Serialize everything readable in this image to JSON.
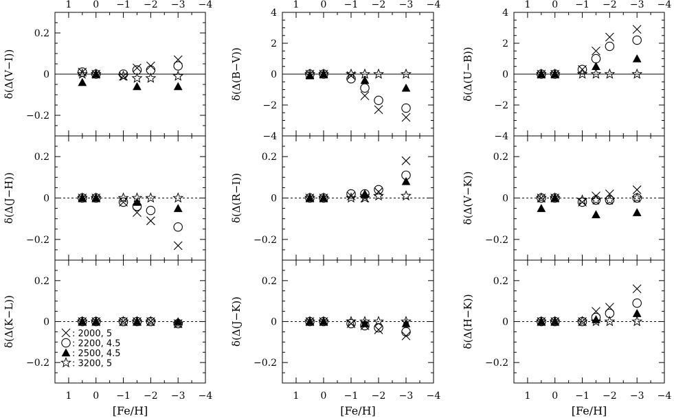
{
  "figure": {
    "x_axis_label": "[Fe/H]",
    "x_tick_labels": [
      "1",
      "0",
      "−1",
      "−2",
      "−3",
      "−4"
    ],
    "colors": {
      "ink": "#000000",
      "background": "#ffffff"
    }
  },
  "legend": {
    "placement": "bottom-left of panel (U−B)",
    "entries": [
      {
        "symbol": "cross",
        "label": "2000, 5"
      },
      {
        "symbol": "open-circle",
        "label": "2200, 4.5"
      },
      {
        "symbol": "filled-triangle",
        "label": "2500, 4.5"
      },
      {
        "symbol": "open-star",
        "label": "3200, 5"
      }
    ]
  },
  "chart_data": [
    {
      "type": "scatter",
      "ylabel": "δ(Δ(V−I))",
      "xlim": [
        1.5,
        -4
      ],
      "ylim": [
        -0.3,
        0.3
      ],
      "y_ticks": [
        -0.2,
        0,
        0.2
      ],
      "y_tick_labels": [
        "−0.2",
        "0",
        "0.2"
      ],
      "zero_line": "solid",
      "series": [
        {
          "name": "2000, 5",
          "marker": "cross",
          "x": [
            0.5,
            0,
            -1,
            -1.5,
            -2,
            -3
          ],
          "y": [
            0.01,
            0,
            -0.01,
            0.03,
            0.04,
            0.07
          ]
        },
        {
          "name": "2200, 4.5",
          "marker": "open-circle",
          "x": [
            0.5,
            0,
            -1,
            -1.5,
            -2,
            -3
          ],
          "y": [
            0.01,
            0,
            0,
            0.02,
            0.02,
            0.04
          ]
        },
        {
          "name": "2500, 4.5",
          "marker": "filled-triangle",
          "x": [
            0.5,
            0,
            -1.5,
            -3
          ],
          "y": [
            -0.04,
            0,
            -0.06,
            -0.06
          ]
        },
        {
          "name": "3200, 5",
          "marker": "open-star",
          "x": [
            0.5,
            0,
            -1,
            -1.5,
            -2,
            -3
          ],
          "y": [
            0,
            0,
            -0.01,
            -0.02,
            -0.02,
            -0.01
          ]
        }
      ]
    },
    {
      "type": "scatter",
      "ylabel": "δ(Δ(J−H))",
      "xlim": [
        1.5,
        -4
      ],
      "ylim": [
        -0.3,
        0.3
      ],
      "y_ticks": [
        -0.2,
        0,
        0.2
      ],
      "y_tick_labels": [
        "−0.2",
        "0",
        "0.2"
      ],
      "zero_line": "dashed",
      "series": [
        {
          "name": "2000, 5",
          "marker": "cross",
          "x": [
            0.5,
            0,
            -1,
            -1.5,
            -2,
            -3
          ],
          "y": [
            0,
            0,
            -0.02,
            -0.07,
            -0.11,
            -0.23
          ]
        },
        {
          "name": "2200, 4.5",
          "marker": "open-circle",
          "x": [
            0.5,
            0,
            -1,
            -1.5,
            -2,
            -3
          ],
          "y": [
            0,
            0,
            -0.02,
            -0.04,
            -0.06,
            -0.14
          ]
        },
        {
          "name": "2500, 4.5",
          "marker": "filled-triangle",
          "x": [
            0.5,
            0,
            -1.5,
            -3
          ],
          "y": [
            0,
            0,
            -0.02,
            -0.05
          ]
        },
        {
          "name": "3200, 5",
          "marker": "open-star",
          "x": [
            0.5,
            0,
            -1,
            -1.5,
            -2,
            -3
          ],
          "y": [
            0,
            0,
            0,
            0,
            0,
            0
          ]
        }
      ]
    },
    {
      "type": "scatter",
      "ylabel": "δ(Δ(K−L))",
      "xlim": [
        1.5,
        -4
      ],
      "ylim": [
        -0.3,
        0.3
      ],
      "y_ticks": [
        -0.2,
        0,
        0.2
      ],
      "y_tick_labels": [
        "−0.2",
        "0",
        "0.2"
      ],
      "zero_line": "dashed",
      "series": [
        {
          "name": "2000, 5",
          "marker": "cross",
          "x": [
            0.5,
            0,
            -1,
            -1.5,
            -2,
            -3
          ],
          "y": [
            0,
            0,
            0,
            0,
            0,
            -0.01
          ]
        },
        {
          "name": "2200, 4.5",
          "marker": "open-circle",
          "x": [
            0.5,
            0,
            -1,
            -1.5,
            -2,
            -3
          ],
          "y": [
            0,
            0,
            0,
            0,
            0,
            -0.01
          ]
        },
        {
          "name": "2500, 4.5",
          "marker": "filled-triangle",
          "x": [
            0.5,
            0,
            -1.5,
            -3
          ],
          "y": [
            0,
            0,
            0,
            0
          ]
        },
        {
          "name": "3200, 5",
          "marker": "open-star",
          "x": [
            0.5,
            0,
            -1,
            -1.5,
            -2,
            -3
          ],
          "y": [
            0,
            0,
            0,
            0,
            0,
            -0.01
          ]
        }
      ]
    },
    {
      "type": "scatter",
      "ylabel": "δ(Δ(B−V))",
      "xlim": [
        1.5,
        -4
      ],
      "ylim": [
        -4,
        4
      ],
      "y_ticks": [
        -4,
        -2,
        0,
        2,
        4
      ],
      "y_tick_labels": [
        "−4",
        "−2",
        "0",
        "2",
        "4"
      ],
      "zero_line": "solid",
      "series": [
        {
          "name": "2000, 5",
          "marker": "cross",
          "x": [
            0.5,
            0,
            -1,
            -1.5,
            -2,
            -3
          ],
          "y": [
            0,
            0,
            -0.1,
            -1.4,
            -2.3,
            -2.8
          ]
        },
        {
          "name": "2200, 4.5",
          "marker": "open-circle",
          "x": [
            0.5,
            0,
            -1,
            -1.5,
            -2,
            -3
          ],
          "y": [
            0,
            0,
            -0.3,
            -0.9,
            -1.7,
            -2.2
          ]
        },
        {
          "name": "2500, 4.5",
          "marker": "filled-triangle",
          "x": [
            0.5,
            0,
            -1.5,
            -3
          ],
          "y": [
            -0.1,
            0,
            -0.4,
            -0.9
          ]
        },
        {
          "name": "3200, 5",
          "marker": "open-star",
          "x": [
            0.5,
            0,
            -1,
            -1.5,
            -2,
            -3
          ],
          "y": [
            0,
            0,
            0,
            0,
            0,
            0
          ]
        }
      ]
    },
    {
      "type": "scatter",
      "ylabel": "δ(Δ(R−I))",
      "xlim": [
        1.5,
        -4
      ],
      "ylim": [
        -0.3,
        0.3
      ],
      "y_ticks": [
        -0.2,
        0,
        0.2
      ],
      "y_tick_labels": [
        "−0.2",
        "0",
        "0.2"
      ],
      "zero_line": "dashed",
      "series": [
        {
          "name": "2000, 5",
          "marker": "cross",
          "x": [
            0.5,
            0,
            -1,
            -1.5,
            -2,
            -3
          ],
          "y": [
            0,
            0,
            0.01,
            0,
            0.03,
            0.18
          ]
        },
        {
          "name": "2200, 4.5",
          "marker": "open-circle",
          "x": [
            0.5,
            0,
            -1,
            -1.5,
            -2,
            -3
          ],
          "y": [
            0,
            0,
            0.02,
            0.02,
            0.04,
            0.11
          ]
        },
        {
          "name": "2500, 4.5",
          "marker": "filled-triangle",
          "x": [
            0.5,
            0,
            -1.5,
            -3
          ],
          "y": [
            0,
            0,
            0.02,
            0.08
          ]
        },
        {
          "name": "3200, 5",
          "marker": "open-star",
          "x": [
            0.5,
            0,
            -1,
            -1.5,
            -2,
            -3
          ],
          "y": [
            0,
            0,
            0,
            0,
            0.01,
            0.01
          ]
        }
      ]
    },
    {
      "type": "scatter",
      "ylabel": "δ(Δ(J−K))",
      "xlim": [
        1.5,
        -4
      ],
      "ylim": [
        -0.3,
        0.3
      ],
      "y_ticks": [
        -0.2,
        0,
        0.2
      ],
      "y_tick_labels": [
        "−0.2",
        "0",
        "0.2"
      ],
      "zero_line": "dashed",
      "series": [
        {
          "name": "2000, 5",
          "marker": "cross",
          "x": [
            0.5,
            0,
            -1,
            -1.5,
            -2,
            -3
          ],
          "y": [
            0,
            0,
            -0.01,
            -0.02,
            -0.04,
            -0.07
          ]
        },
        {
          "name": "2200, 4.5",
          "marker": "open-circle",
          "x": [
            0.5,
            0,
            -1,
            -1.5,
            -2,
            -3
          ],
          "y": [
            0,
            0,
            -0.01,
            -0.02,
            -0.03,
            -0.05
          ]
        },
        {
          "name": "2500, 4.5",
          "marker": "filled-triangle",
          "x": [
            0.5,
            0,
            -1.5,
            -3
          ],
          "y": [
            0,
            0,
            -0.01,
            -0.01
          ]
        },
        {
          "name": "3200, 5",
          "marker": "open-star",
          "x": [
            0.5,
            0,
            -1,
            -1.5,
            -2,
            -3
          ],
          "y": [
            0,
            0,
            0,
            0,
            0,
            0
          ]
        }
      ]
    },
    {
      "type": "scatter",
      "ylabel": "δ(Δ(U−B))",
      "xlim": [
        1.5,
        -4
      ],
      "ylim": [
        -4,
        4
      ],
      "y_ticks": [
        -4,
        -2,
        0,
        2,
        4
      ],
      "y_tick_labels": [
        "−4",
        "−2",
        "0",
        "2",
        "4"
      ],
      "zero_line": "solid",
      "series": [
        {
          "name": "2000, 5",
          "marker": "cross",
          "x": [
            0.5,
            0,
            -1,
            -1.5,
            -2,
            -3
          ],
          "y": [
            0,
            0,
            0.3,
            1.5,
            2.4,
            2.9
          ]
        },
        {
          "name": "2200, 4.5",
          "marker": "open-circle",
          "x": [
            0.5,
            0,
            -1,
            -1.5,
            -2,
            -3
          ],
          "y": [
            0,
            0,
            0.3,
            1.0,
            1.8,
            2.2
          ]
        },
        {
          "name": "2500, 4.5",
          "marker": "filled-triangle",
          "x": [
            0.5,
            0,
            -1.5,
            -3
          ],
          "y": [
            0,
            0,
            0.5,
            1.0
          ]
        },
        {
          "name": "3200, 5",
          "marker": "open-star",
          "x": [
            0.5,
            0,
            -1,
            -1.5,
            -2,
            -3
          ],
          "y": [
            0,
            0,
            0,
            0,
            0,
            0
          ]
        }
      ]
    },
    {
      "type": "scatter",
      "ylabel": "δ(Δ(V−K))",
      "xlim": [
        1.5,
        -4
      ],
      "ylim": [
        -0.3,
        0.3
      ],
      "y_ticks": [
        -0.2,
        0,
        0.2
      ],
      "y_tick_labels": [
        "−0.2",
        "0",
        "0.2"
      ],
      "zero_line": "dashed",
      "series": [
        {
          "name": "2000, 5",
          "marker": "cross",
          "x": [
            0.5,
            0,
            -1,
            -1.5,
            -2,
            -3
          ],
          "y": [
            0,
            0,
            -0.02,
            0.01,
            0.02,
            0.04
          ]
        },
        {
          "name": "2200, 4.5",
          "marker": "open-circle",
          "x": [
            0.5,
            0,
            -1,
            -1.5,
            -2,
            -3
          ],
          "y": [
            0,
            0,
            -0.02,
            -0.01,
            -0.01,
            0
          ]
        },
        {
          "name": "2500, 4.5",
          "marker": "filled-triangle",
          "x": [
            0.5,
            0,
            -1.5,
            -3
          ],
          "y": [
            -0.05,
            0,
            -0.08,
            -0.07
          ]
        },
        {
          "name": "3200, 5",
          "marker": "open-star",
          "x": [
            0.5,
            0,
            -1,
            -1.5,
            -2,
            -3
          ],
          "y": [
            0,
            0,
            -0.01,
            -0.01,
            -0.01,
            0
          ]
        }
      ]
    },
    {
      "type": "scatter",
      "ylabel": "δ(Δ(H−K))",
      "xlim": [
        1.5,
        -4
      ],
      "ylim": [
        -0.3,
        0.3
      ],
      "y_ticks": [
        -0.2,
        0,
        0.2
      ],
      "y_tick_labels": [
        "−0.2",
        "0",
        "0.2"
      ],
      "zero_line": "dashed",
      "series": [
        {
          "name": "2000, 5",
          "marker": "cross",
          "x": [
            0.5,
            0,
            -1,
            -1.5,
            -2,
            -3
          ],
          "y": [
            0,
            0,
            0,
            0.05,
            0.07,
            0.16
          ]
        },
        {
          "name": "2200, 4.5",
          "marker": "open-circle",
          "x": [
            0.5,
            0,
            -1,
            -1.5,
            -2,
            -3
          ],
          "y": [
            0,
            0,
            0,
            0.02,
            0.04,
            0.09
          ]
        },
        {
          "name": "2500, 4.5",
          "marker": "filled-triangle",
          "x": [
            0.5,
            0,
            -1.5,
            -3
          ],
          "y": [
            0,
            0,
            0.01,
            0.04
          ]
        },
        {
          "name": "3200, 5",
          "marker": "open-star",
          "x": [
            0.5,
            0,
            -1,
            -1.5,
            -2,
            -3
          ],
          "y": [
            0,
            0,
            0,
            0,
            0,
            0
          ]
        }
      ]
    }
  ]
}
